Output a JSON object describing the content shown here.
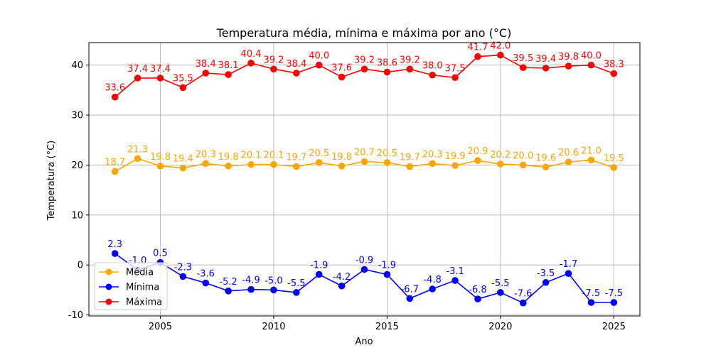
{
  "chart_data": {
    "type": "line",
    "title": "Temperatura média, mínima e máxima por ano (°C)",
    "xlabel": "Ano",
    "ylabel": "Temperatura (°C)",
    "xlim": [
      2001.85,
      2026.15
    ],
    "ylim": [
      -10.2,
      44.5
    ],
    "xticks": [
      2005,
      2010,
      2015,
      2020,
      2025
    ],
    "yticks": [
      -10,
      0,
      10,
      20,
      30,
      40
    ],
    "grid": true,
    "legend_position": "bottom-left",
    "x": [
      2003,
      2004,
      2005,
      2006,
      2007,
      2008,
      2009,
      2010,
      2011,
      2012,
      2013,
      2014,
      2015,
      2016,
      2017,
      2018,
      2019,
      2020,
      2021,
      2022,
      2023,
      2024,
      2025
    ],
    "series": [
      {
        "name": "Média",
        "color": "#FFA500",
        "values": [
          18.7,
          21.3,
          19.8,
          19.4,
          20.3,
          19.8,
          20.1,
          20.1,
          19.7,
          20.5,
          19.8,
          20.7,
          20.5,
          19.7,
          20.3,
          19.9,
          20.9,
          20.2,
          20.0,
          19.6,
          20.6,
          21.0,
          19.5
        ]
      },
      {
        "name": "Mínima",
        "color": "#0000FF",
        "values": [
          2.3,
          -1.0,
          0.5,
          -2.3,
          -3.6,
          -5.2,
          -4.9,
          -5.0,
          -5.5,
          -1.9,
          -4.2,
          -0.9,
          -1.9,
          -6.7,
          -4.8,
          -3.1,
          -6.8,
          -5.5,
          -7.6,
          -3.5,
          -1.7,
          -7.5,
          -7.5
        ]
      },
      {
        "name": "Máxima",
        "color": "#FF0000",
        "values": [
          33.6,
          37.4,
          37.4,
          35.5,
          38.4,
          38.1,
          40.4,
          39.2,
          38.4,
          40.0,
          37.6,
          39.2,
          38.6,
          39.2,
          38.0,
          37.5,
          41.7,
          42.0,
          39.5,
          39.4,
          39.8,
          40.0,
          38.3
        ]
      }
    ]
  }
}
